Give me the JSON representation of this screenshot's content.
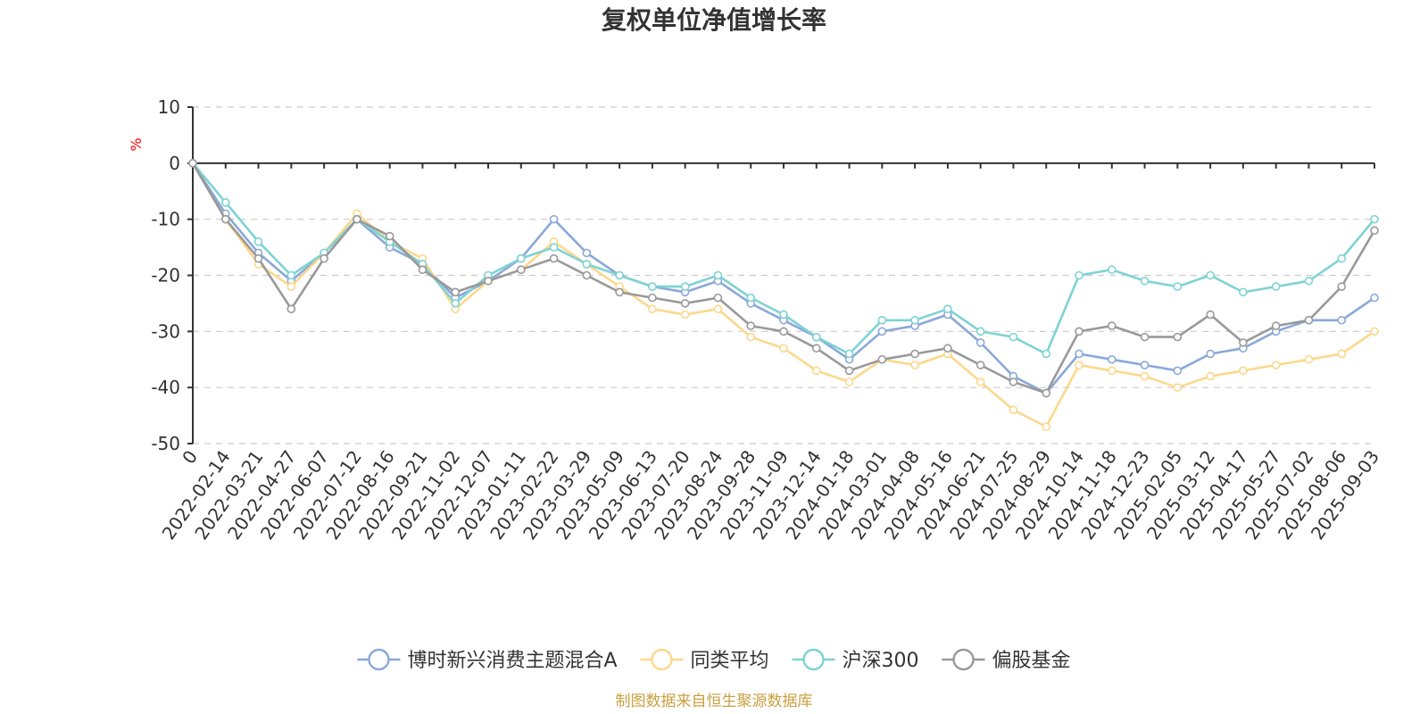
{
  "chart_data": {
    "type": "line",
    "title": "复权单位净值增长率",
    "ylabel": "%",
    "ylim": [
      -50,
      10
    ],
    "yticks": [
      10,
      0,
      -10,
      -20,
      -30,
      -40,
      -50
    ],
    "grid": true,
    "legend_position": "bottom",
    "x": [
      "0",
      "2022-02-14",
      "2022-03-21",
      "2022-04-27",
      "2022-06-07",
      "2022-07-12",
      "2022-08-16",
      "2022-09-21",
      "2022-11-02",
      "2022-12-07",
      "2023-01-11",
      "2023-02-22",
      "2023-03-29",
      "2023-05-09",
      "2023-06-13",
      "2023-07-20",
      "2023-08-24",
      "2023-09-28",
      "2023-11-09",
      "2023-12-14",
      "2024-01-18",
      "2024-03-01",
      "2024-04-08",
      "2024-05-16",
      "2024-06-21",
      "2024-07-25",
      "2024-08-29",
      "2024-10-14",
      "2024-11-18",
      "2024-12-23",
      "2025-02-05",
      "2025-03-12",
      "2025-04-17",
      "2025-05-27",
      "2025-07-02",
      "2025-08-06",
      "2025-09-03"
    ],
    "series": [
      {
        "name": "博时新兴消费主题混合A",
        "color": "#8aa8d8",
        "values": [
          0,
          -9,
          -16,
          -21,
          -16,
          -10,
          -15,
          -18,
          -24,
          -21,
          -17,
          -10,
          -16,
          -20,
          -22,
          -23,
          -21,
          -25,
          -28,
          -31,
          -35,
          -30,
          -29,
          -27,
          -32,
          -38,
          -41,
          -34,
          -35,
          -36,
          -37,
          -34,
          -33,
          -30,
          -28,
          -28,
          -24
        ]
      },
      {
        "name": "同类平均",
        "color": "#fcd88c",
        "values": [
          0,
          -10,
          -18,
          -22,
          -16,
          -9,
          -14,
          -17,
          -26,
          -21,
          -19,
          -14,
          -18,
          -22,
          -26,
          -27,
          -26,
          -31,
          -33,
          -37,
          -39,
          -35,
          -36,
          -34,
          -39,
          -44,
          -47,
          -36,
          -37,
          -38,
          -40,
          -38,
          -37,
          -36,
          -35,
          -34,
          -30
        ]
      },
      {
        "name": "沪深300",
        "color": "#7ed3d3",
        "values": [
          0,
          -7,
          -14,
          -20,
          -16,
          -10,
          -14,
          -18,
          -25,
          -20,
          -17,
          -15,
          -18,
          -20,
          -22,
          -22,
          -20,
          -24,
          -27,
          -31,
          -34,
          -28,
          -28,
          -26,
          -30,
          -31,
          -34,
          -20,
          -19,
          -21,
          -22,
          -20,
          -23,
          -22,
          -21,
          -17,
          -10
        ]
      },
      {
        "name": "偏股基金",
        "color": "#999999",
        "values": [
          0,
          -10,
          -17,
          -26,
          -17,
          -10,
          -13,
          -19,
          -23,
          -21,
          -19,
          -17,
          -20,
          -23,
          -24,
          -25,
          -24,
          -29,
          -30,
          -33,
          -37,
          -35,
          -34,
          -33,
          -36,
          -39,
          -41,
          -30,
          -29,
          -31,
          -31,
          -27,
          -32,
          -29,
          -28,
          -22,
          -12
        ]
      }
    ]
  },
  "footer": {
    "source": "制图数据来自恒生聚源数据库"
  }
}
